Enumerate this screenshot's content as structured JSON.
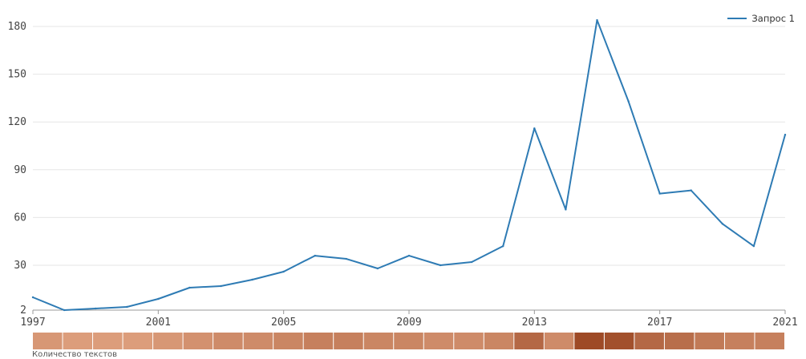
{
  "chart_data": {
    "type": "line",
    "x": [
      1997,
      1998,
      1999,
      2000,
      2001,
      2002,
      2003,
      2004,
      2005,
      2006,
      2007,
      2008,
      2009,
      2010,
      2011,
      2012,
      2013,
      2014,
      2015,
      2016,
      2017,
      2018,
      2019,
      2020,
      2021
    ],
    "series": [
      {
        "name": "Запрос 1",
        "color": "#2e7bb4",
        "values": [
          10,
          2,
          3,
          4,
          9,
          16,
          17,
          21,
          26,
          36,
          34,
          28,
          36,
          30,
          32,
          42,
          116,
          65,
          184,
          133,
          75,
          77,
          56,
          42,
          112
        ]
      }
    ],
    "y_ticks": [
      2,
      30,
      60,
      90,
      120,
      150,
      180
    ],
    "x_ticks": [
      1997,
      2001,
      2005,
      2009,
      2013,
      2017,
      2021
    ],
    "ylim": [
      2,
      190
    ],
    "xlim": [
      1997,
      2021
    ],
    "grid": true,
    "legend_position": "top-right",
    "heatmap_strip": {
      "caption": "Количество текстов",
      "levels": [
        0.35,
        0.3,
        0.3,
        0.3,
        0.35,
        0.4,
        0.45,
        0.45,
        0.5,
        0.55,
        0.55,
        0.5,
        0.5,
        0.45,
        0.45,
        0.5,
        0.75,
        0.45,
        1.0,
        0.95,
        0.75,
        0.7,
        0.6,
        0.55,
        0.55
      ]
    }
  }
}
